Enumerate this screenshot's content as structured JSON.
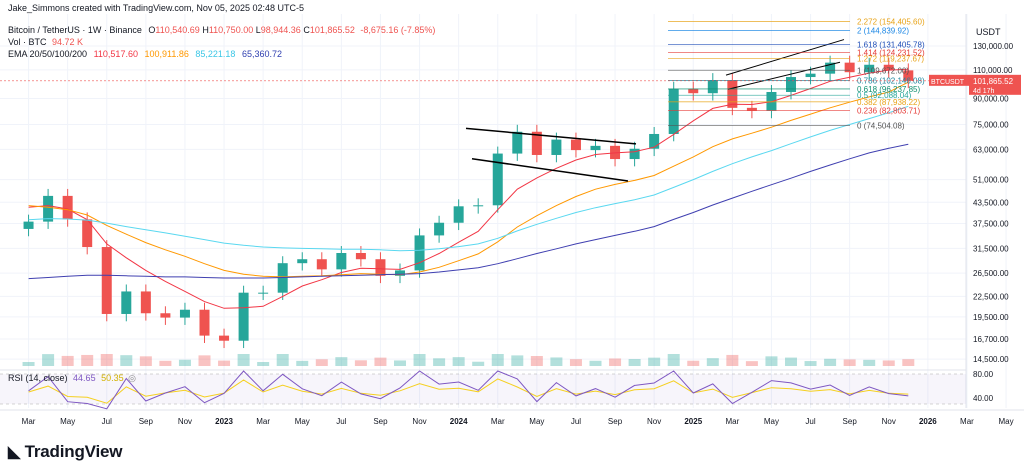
{
  "header": {
    "attribution": "Jake_Simmons created with TradingView.com, Nov 05, 2025 02:48 UTC-5",
    "symbol_title": "Bitcoin / TetherUS · 1W · Binance",
    "ohlc": {
      "open_label": "O",
      "open": "110,540.69",
      "high_label": "H",
      "high": "110,750.00",
      "low_label": "L",
      "low": "98,944.36",
      "close_label": "C",
      "close": "101,865.52",
      "change": "-8,675.16 (-7.85%)"
    },
    "volume": {
      "label": "Vol · BTC",
      "value": "94.72 K"
    },
    "ema": {
      "label": "EMA 20/50/100/200",
      "values": [
        "110,517.60",
        "100,911.86",
        "85,221.18",
        "65,360.72"
      ]
    },
    "currency": "USDT"
  },
  "colors": {
    "up": "#26a69a",
    "down": "#ef5350",
    "ema20": "#f23645",
    "ema50": "#ff9800",
    "ema100": "#5ad8f0",
    "ema200": "#3f3fb0",
    "rsi": "#7e57c2",
    "rsi_ma": "#f5d020"
  },
  "price_badge": {
    "symbol": "BTCUSDT",
    "price": "101,865.52",
    "countdown": "4d 17h"
  },
  "fib_labels": [
    {
      "text": "2.272 (154,405.60)",
      "color": "#e8a317"
    },
    {
      "text": "2 (144,839.92)",
      "color": "#1e88e5"
    },
    {
      "text": "1.618 (131,405.78)",
      "color": "#1e4db7"
    },
    {
      "text": "1.414 (124,231.52)",
      "color": "#e53935"
    },
    {
      "text": "1.272 (119,237.67)",
      "color": "#e8a317"
    },
    {
      "text": "1 (109,672.00)",
      "color": "#555555"
    },
    {
      "text": "0.786 (102,146.08)",
      "color": "#1e88a0"
    },
    {
      "text": "0.618 (96,237.85)",
      "color": "#0f8f6f"
    },
    {
      "text": "0.5 (92,088.04)",
      "color": "#26a69a"
    },
    {
      "text": "0.382 (87,938.22)",
      "color": "#e8a317"
    },
    {
      "text": "0.236 (82,803.71)",
      "color": "#e53935"
    },
    {
      "text": "0 (74,504.08)",
      "color": "#555555"
    }
  ],
  "rsi": {
    "label": "RSI (14, close)",
    "value": "44.65",
    "ma_value": "50.35",
    "axis_ticks": [
      "80.00",
      "40.00"
    ]
  },
  "footer": {
    "logo_text": "TradingView"
  },
  "chart_data": {
    "type": "line",
    "title": "Bitcoin / TetherUS · 1W · Binance",
    "price_scale": "log",
    "ylim": [
      14500,
      160000
    ],
    "y_ticks": [
      "130,000.00",
      "110,000.00",
      "90,000.00",
      "75,000.00",
      "63,000.00",
      "51,000.00",
      "43,500.00",
      "37,500.00",
      "31,500.00",
      "26,500.00",
      "22,500.00",
      "19,500.00",
      "16,700.00",
      "14,500.00"
    ],
    "x_ticks": [
      "Mar",
      "May",
      "Jul",
      "Sep",
      "Nov",
      "2023",
      "Mar",
      "May",
      "Jul",
      "Sep",
      "Nov",
      "2024",
      "Mar",
      "May",
      "Jul",
      "Sep",
      "Nov",
      "2025",
      "Mar",
      "May",
      "Jul",
      "Sep",
      "Nov",
      "2026",
      "Mar",
      "May"
    ],
    "x": [
      "2022-02",
      "2022-03",
      "2022-04",
      "2022-05",
      "2022-06",
      "2022-07",
      "2022-08",
      "2022-09",
      "2022-10",
      "2022-11",
      "2022-12",
      "2023-01",
      "2023-02",
      "2023-03",
      "2023-04",
      "2023-05",
      "2023-06",
      "2023-07",
      "2023-08",
      "2023-09",
      "2023-10",
      "2023-11",
      "2023-12",
      "2024-01",
      "2024-02",
      "2024-03",
      "2024-04",
      "2024-05",
      "2024-06",
      "2024-07",
      "2024-08",
      "2024-09",
      "2024-10",
      "2024-11",
      "2024-12",
      "2025-01",
      "2025-02",
      "2025-03",
      "2025-04",
      "2025-05",
      "2025-06",
      "2025-07",
      "2025-08",
      "2025-09",
      "2025-10",
      "2025-11"
    ],
    "series": [
      {
        "name": "Bitcoin / TetherUS",
        "values": [
          38000,
          45500,
          38600,
          31800,
          19900,
          23300,
          20000,
          19400,
          20500,
          17100,
          16500,
          23100,
          23100,
          28400,
          29200,
          27200,
          30500,
          29200,
          26000,
          27000,
          34500,
          37700,
          42300,
          42600,
          61200,
          71300,
          60600,
          67500,
          62700,
          64600,
          58900,
          63300,
          70200,
          96400,
          93400,
          102400,
          84300,
          82500,
          94200,
          104600,
          107100,
          115700,
          108200,
          114000,
          109600,
          101865
        ]
      },
      {
        "name": "EMA 20",
        "values": [
          42000,
          42500,
          41500,
          38500,
          32500,
          29500,
          27000,
          25000,
          23300,
          21700,
          20700,
          20800,
          21000,
          22500,
          24200,
          25300,
          26600,
          27400,
          27300,
          27200,
          28500,
          30400,
          32900,
          35500,
          41300,
          47700,
          51600,
          55200,
          58500,
          60800,
          61500,
          62000,
          64000,
          70000,
          77000,
          84000,
          86500,
          86300,
          88000,
          92000,
          96500,
          101500,
          104500,
          107500,
          109800,
          110517
        ]
      },
      {
        "name": "EMA 50",
        "values": [
          42500,
          42000,
          41300,
          39800,
          37000,
          34800,
          32800,
          31200,
          29800,
          28300,
          27000,
          26300,
          25900,
          25800,
          25900,
          26000,
          26200,
          26400,
          26300,
          26200,
          26700,
          27600,
          28900,
          30300,
          33000,
          36600,
          39600,
          42500,
          45300,
          47700,
          49300,
          50700,
          52500,
          56000,
          59800,
          64200,
          67800,
          70600,
          73600,
          77200,
          80700,
          84300,
          87700,
          91000,
          94200,
          100911
        ]
      },
      {
        "name": "EMA 100",
        "values": [
          38500,
          38800,
          38700,
          38400,
          37600,
          36700,
          35900,
          35100,
          34300,
          33500,
          32700,
          32200,
          31800,
          31600,
          31500,
          31400,
          31300,
          31300,
          31200,
          31000,
          31100,
          31400,
          31900,
          32500,
          33800,
          35600,
          37300,
          38900,
          40500,
          41900,
          43100,
          44300,
          45800,
          48300,
          51000,
          54000,
          57000,
          59800,
          62500,
          65600,
          68800,
          72000,
          75000,
          78200,
          81500,
          85221
        ]
      },
      {
        "name": "EMA 200",
        "values": [
          25500,
          25700,
          25900,
          26100,
          26100,
          26000,
          25900,
          25800,
          25800,
          25700,
          25600,
          25600,
          25600,
          25700,
          25800,
          25900,
          26000,
          26100,
          26200,
          26300,
          26400,
          26700,
          27100,
          27500,
          28300,
          29300,
          30400,
          31400,
          32500,
          33500,
          34500,
          35500,
          36700,
          38600,
          40500,
          42700,
          44800,
          47000,
          49200,
          51500,
          54000,
          56500,
          59000,
          61500,
          63500,
          65360
        ]
      }
    ]
  }
}
